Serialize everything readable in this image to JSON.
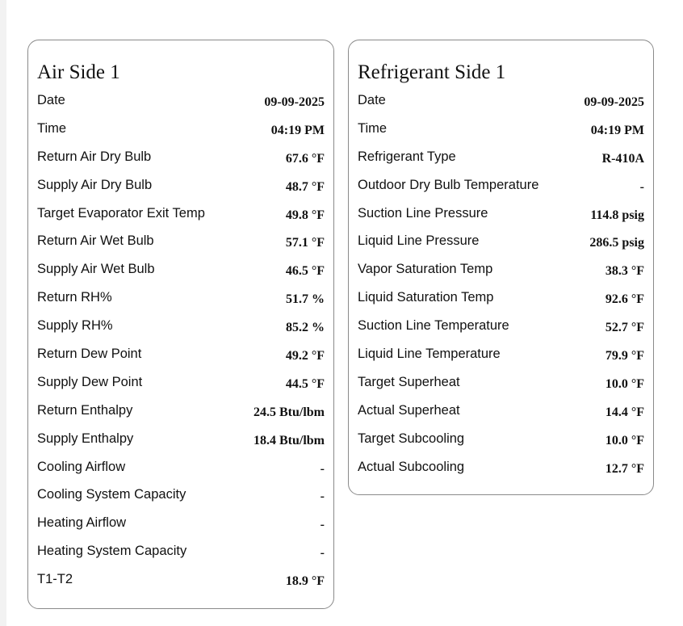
{
  "air_side": {
    "title": "Air Side 1",
    "rows": [
      {
        "label": "Date",
        "value": "09-09-2025"
      },
      {
        "label": "Time",
        "value": "04:19 PM"
      },
      {
        "label": "Return Air Dry Bulb",
        "value": "67.6 °F"
      },
      {
        "label": "Supply Air Dry Bulb",
        "value": "48.7 °F"
      },
      {
        "label": "Target Evaporator Exit Temp",
        "value": "49.8 °F"
      },
      {
        "label": "Return Air Wet Bulb",
        "value": "57.1 °F"
      },
      {
        "label": "Supply Air Wet Bulb",
        "value": "46.5 °F"
      },
      {
        "label": "Return RH%",
        "value": "51.7 %"
      },
      {
        "label": "Supply RH%",
        "value": "85.2 %"
      },
      {
        "label": "Return Dew Point",
        "value": "49.2 °F"
      },
      {
        "label": "Supply Dew Point",
        "value": "44.5 °F"
      },
      {
        "label": "Return Enthalpy",
        "value": "24.5 Btu/lbm"
      },
      {
        "label": "Supply Enthalpy",
        "value": "18.4 Btu/lbm"
      },
      {
        "label": "Cooling Airflow",
        "value": "-"
      },
      {
        "label": "Cooling System Capacity",
        "value": "-"
      },
      {
        "label": "Heating Airflow",
        "value": "-"
      },
      {
        "label": "Heating System Capacity",
        "value": "-"
      },
      {
        "label": "T1-T2",
        "value": "18.9 °F"
      }
    ]
  },
  "refrigerant_side": {
    "title": "Refrigerant Side 1",
    "rows": [
      {
        "label": "Date",
        "value": "09-09-2025"
      },
      {
        "label": "Time",
        "value": "04:19 PM"
      },
      {
        "label": "Refrigerant Type",
        "value": "R-410A"
      },
      {
        "label": "Outdoor Dry Bulb Temperature",
        "value": "-"
      },
      {
        "label": "Suction Line Pressure",
        "value": "114.8 psig"
      },
      {
        "label": "Liquid Line Pressure",
        "value": "286.5 psig"
      },
      {
        "label": "Vapor Saturation Temp",
        "value": "38.3 °F"
      },
      {
        "label": "Liquid Saturation Temp",
        "value": "92.6 °F"
      },
      {
        "label": "Suction Line Temperature",
        "value": "52.7 °F"
      },
      {
        "label": "Liquid Line Temperature",
        "value": "79.9 °F"
      },
      {
        "label": "Target Superheat",
        "value": "10.0 °F"
      },
      {
        "label": "Actual Superheat",
        "value": "14.4 °F"
      },
      {
        "label": "Target Subcooling",
        "value": "10.0 °F"
      },
      {
        "label": "Actual Subcooling",
        "value": "12.7 °F"
      }
    ]
  }
}
